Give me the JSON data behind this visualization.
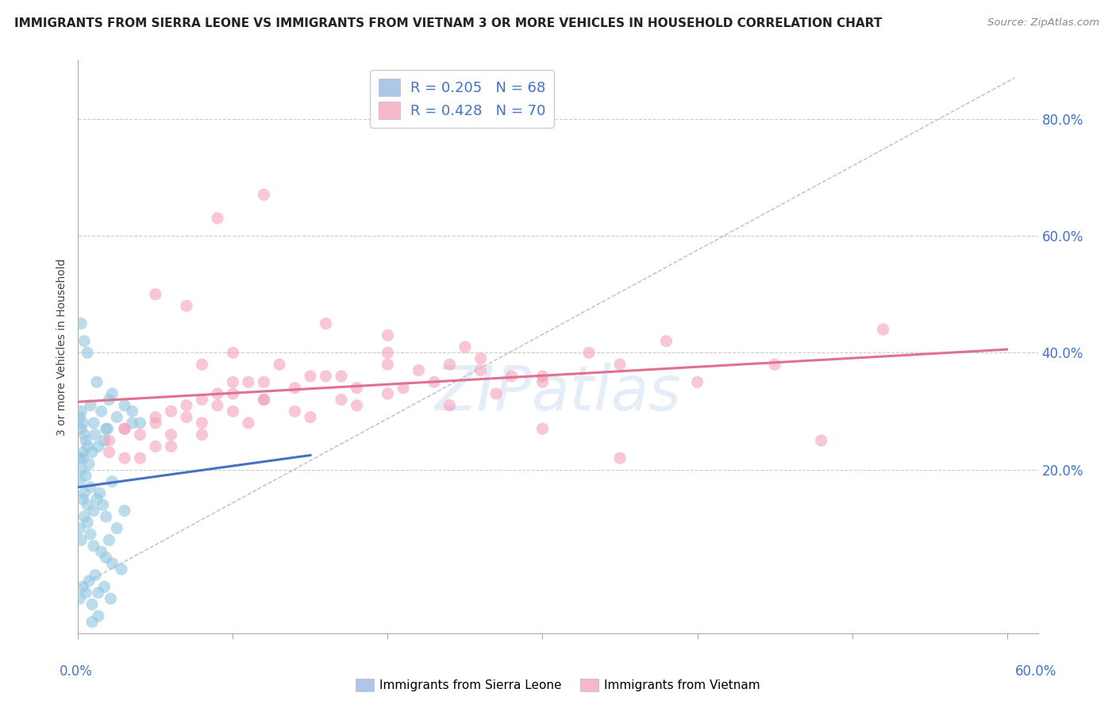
{
  "title": "IMMIGRANTS FROM SIERRA LEONE VS IMMIGRANTS FROM VIETNAM 3 OR MORE VEHICLES IN HOUSEHOLD CORRELATION CHART",
  "source": "Source: ZipAtlas.com",
  "ylabel": "3 or more Vehicles in Household",
  "yaxis_ticks": [
    0.0,
    0.2,
    0.4,
    0.6,
    0.8
  ],
  "yaxis_labels_right": [
    "",
    "20.0%",
    "40.0%",
    "60.0%",
    "80.0%"
  ],
  "watermark": "ZIPatlas",
  "sierra_leone_color": "#92c5de",
  "vietnam_color": "#f4a0b8",
  "sierra_leone_line_color": "#4472c4",
  "vietnam_line_color": "#e07090",
  "ref_line_color": "#aaaacc",
  "background_color": "#ffffff",
  "grid_color": "#cccccc",
  "xlim": [
    0.0,
    0.62
  ],
  "ylim": [
    -0.08,
    0.9
  ],
  "legend_sl_color": "#aec6e8",
  "legend_vn_color": "#f4b8c8",
  "legend_text_color": "#4472c4",
  "sl_label": "R = 0.205   N = 68",
  "vn_label": "R = 0.428   N = 70",
  "bottom_sl_label": "Immigrants from Sierra Leone",
  "bottom_vn_label": "Immigrants from Vietnam",
  "sl_x": [
    0.005,
    0.003,
    0.002,
    0.001,
    0.004,
    0.006,
    0.002,
    0.008,
    0.003,
    0.001,
    0.012,
    0.015,
    0.01,
    0.02,
    0.018,
    0.022,
    0.025,
    0.03,
    0.035,
    0.04,
    0.001,
    0.002,
    0.003,
    0.005,
    0.007,
    0.009,
    0.011,
    0.013,
    0.017,
    0.019,
    0.003,
    0.004,
    0.006,
    0.008,
    0.01,
    0.012,
    0.014,
    0.016,
    0.018,
    0.022,
    0.001,
    0.002,
    0.004,
    0.006,
    0.008,
    0.01,
    0.015,
    0.02,
    0.025,
    0.03,
    0.001,
    0.003,
    0.005,
    0.007,
    0.009,
    0.011,
    0.013,
    0.017,
    0.021,
    0.028,
    0.002,
    0.004,
    0.006,
    0.009,
    0.013,
    0.018,
    0.022,
    0.035
  ],
  "sl_y": [
    0.25,
    0.28,
    0.3,
    0.22,
    0.26,
    0.24,
    0.27,
    0.31,
    0.23,
    0.29,
    0.35,
    0.3,
    0.28,
    0.32,
    0.27,
    0.33,
    0.29,
    0.31,
    0.3,
    0.28,
    0.18,
    0.2,
    0.22,
    0.19,
    0.21,
    0.23,
    0.26,
    0.24,
    0.25,
    0.27,
    0.15,
    0.16,
    0.14,
    0.17,
    0.13,
    0.15,
    0.16,
    0.14,
    0.12,
    0.18,
    0.1,
    0.08,
    0.12,
    0.11,
    0.09,
    0.07,
    0.06,
    0.08,
    0.1,
    0.13,
    -0.02,
    0.0,
    -0.01,
    0.01,
    -0.03,
    0.02,
    -0.01,
    0.0,
    -0.02,
    0.03,
    0.45,
    0.42,
    0.4,
    -0.06,
    -0.05,
    0.05,
    0.04,
    0.28
  ],
  "vn_x": [
    0.02,
    0.03,
    0.04,
    0.05,
    0.06,
    0.07,
    0.08,
    0.09,
    0.1,
    0.12,
    0.02,
    0.03,
    0.05,
    0.06,
    0.08,
    0.1,
    0.12,
    0.15,
    0.18,
    0.2,
    0.03,
    0.05,
    0.07,
    0.09,
    0.11,
    0.14,
    0.17,
    0.2,
    0.23,
    0.26,
    0.04,
    0.06,
    0.08,
    0.11,
    0.14,
    0.17,
    0.21,
    0.24,
    0.27,
    0.3,
    0.08,
    0.1,
    0.12,
    0.15,
    0.18,
    0.22,
    0.26,
    0.3,
    0.35,
    0.4,
    0.1,
    0.13,
    0.16,
    0.2,
    0.24,
    0.28,
    0.33,
    0.38,
    0.45,
    0.52,
    0.05,
    0.07,
    0.09,
    0.12,
    0.16,
    0.2,
    0.25,
    0.3,
    0.35,
    0.48
  ],
  "vn_y": [
    0.25,
    0.27,
    0.26,
    0.28,
    0.3,
    0.29,
    0.32,
    0.31,
    0.33,
    0.35,
    0.23,
    0.22,
    0.24,
    0.26,
    0.28,
    0.3,
    0.32,
    0.29,
    0.31,
    0.33,
    0.27,
    0.29,
    0.31,
    0.33,
    0.35,
    0.34,
    0.36,
    0.38,
    0.35,
    0.37,
    0.22,
    0.24,
    0.26,
    0.28,
    0.3,
    0.32,
    0.34,
    0.31,
    0.33,
    0.35,
    0.38,
    0.35,
    0.32,
    0.36,
    0.34,
    0.37,
    0.39,
    0.36,
    0.38,
    0.35,
    0.4,
    0.38,
    0.36,
    0.4,
    0.38,
    0.36,
    0.4,
    0.42,
    0.38,
    0.44,
    0.5,
    0.48,
    0.63,
    0.67,
    0.45,
    0.43,
    0.41,
    0.27,
    0.22,
    0.25
  ]
}
